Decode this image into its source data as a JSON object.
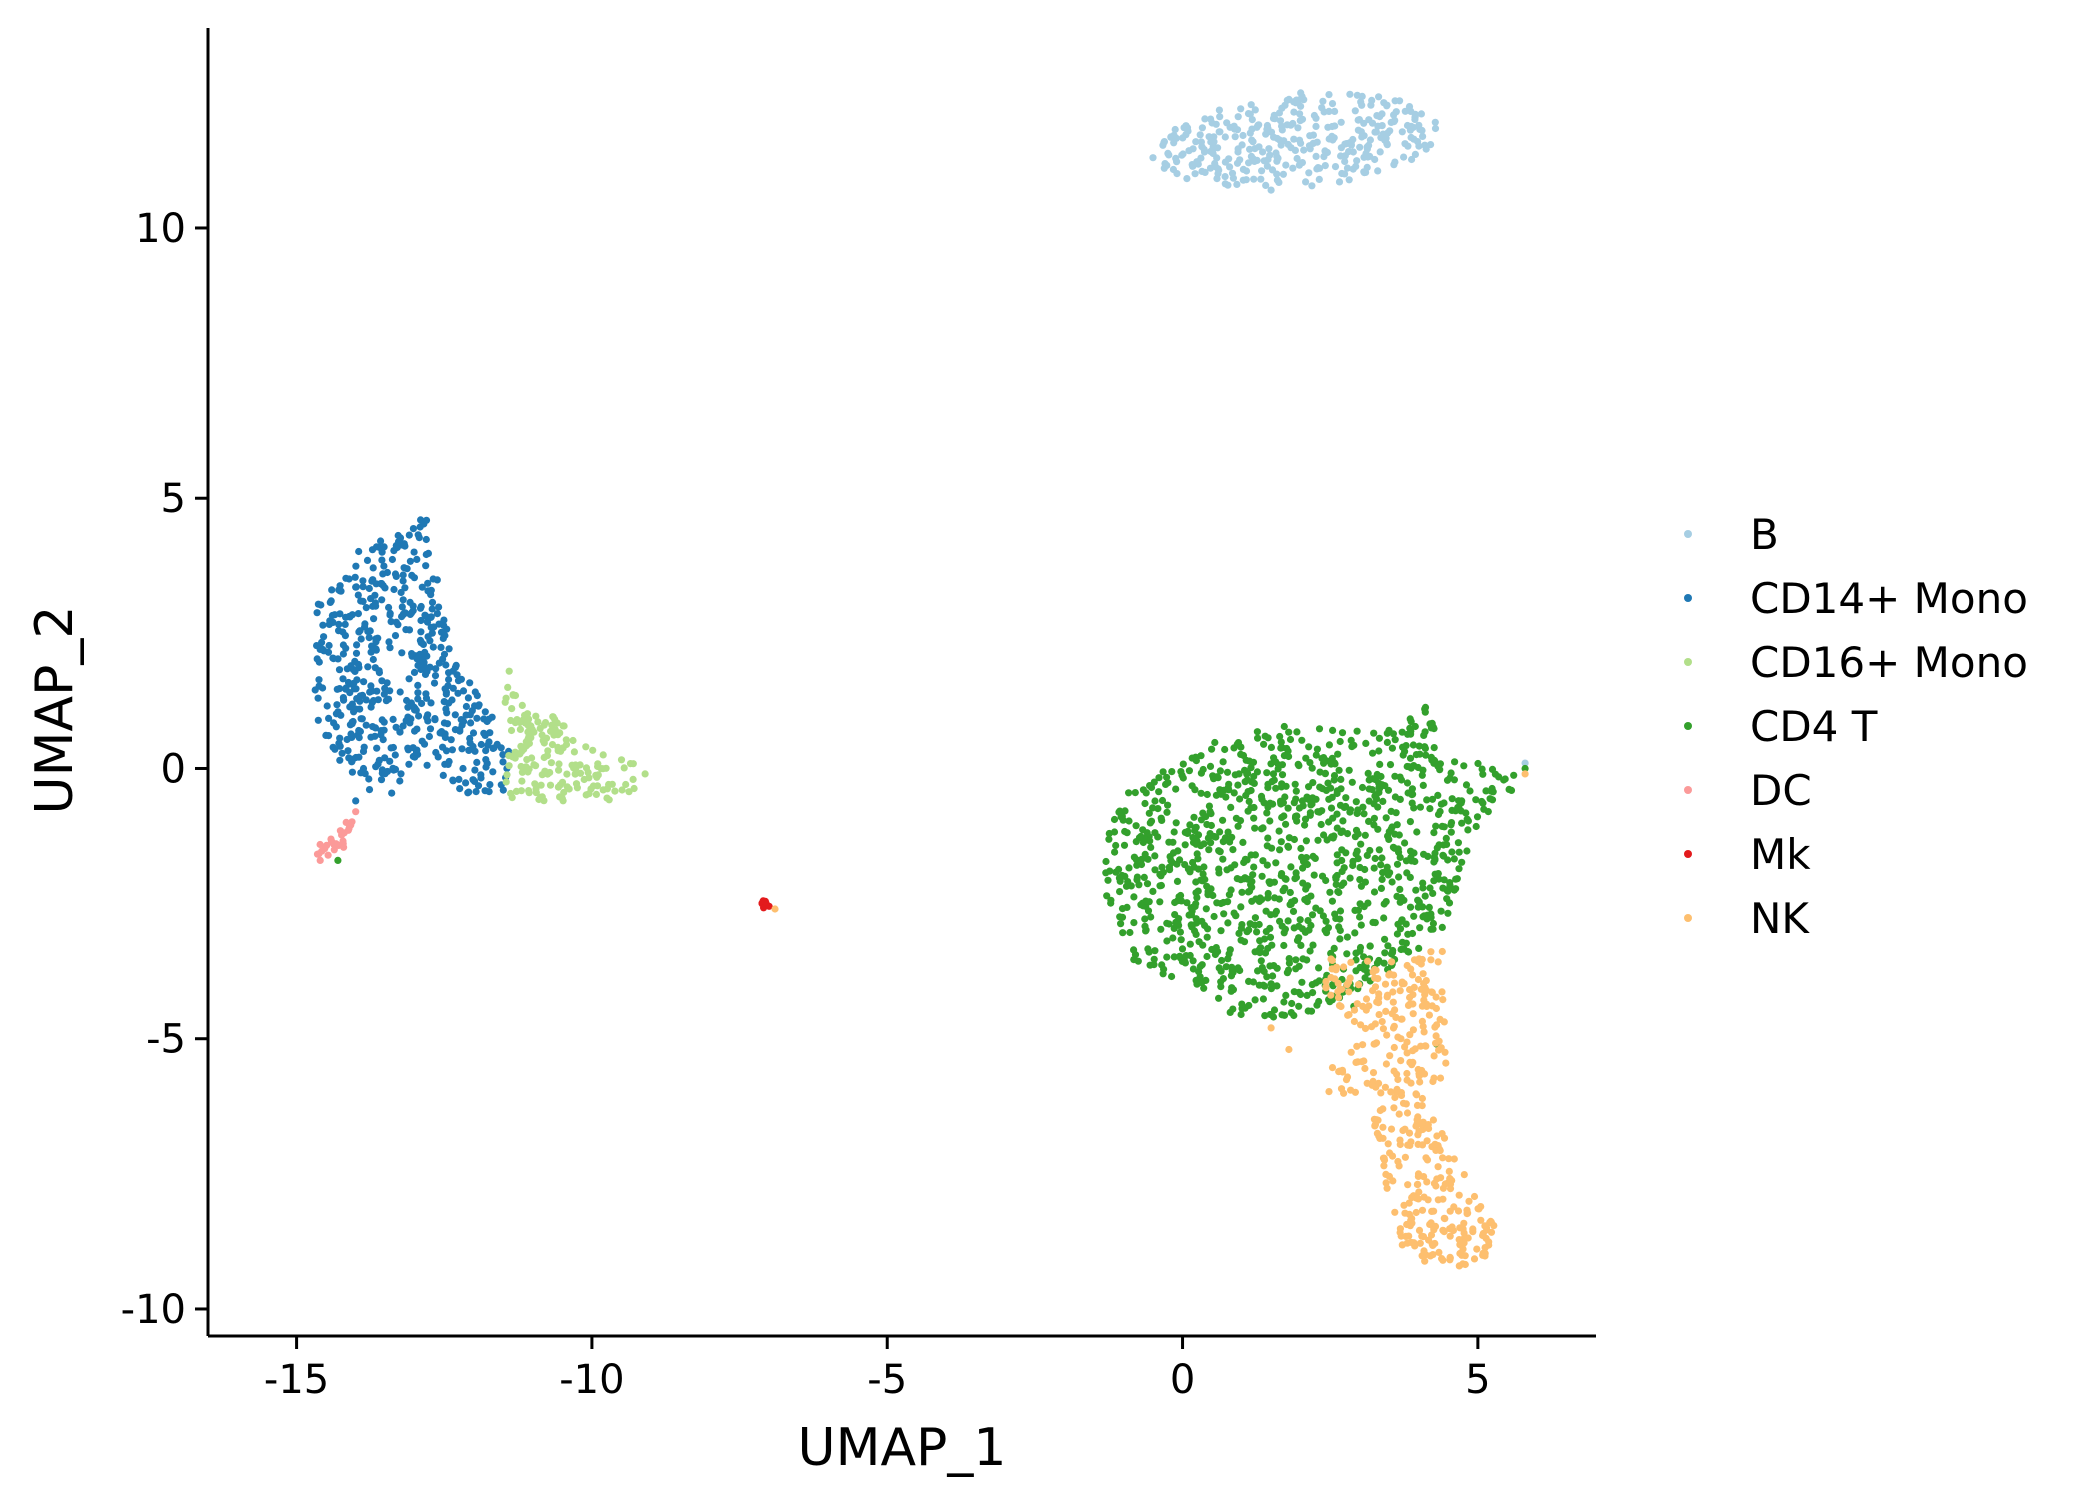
{
  "chart_data": {
    "type": "scatter",
    "title": "",
    "xlabel": "UMAP_1",
    "ylabel": "UMAP_2",
    "xlim": [
      -16.5,
      7
    ],
    "ylim": [
      -10.5,
      13.7
    ],
    "xticks": [
      {
        "value": -15,
        "label": "-15"
      },
      {
        "value": -10,
        "label": "-10"
      },
      {
        "value": -5,
        "label": "-5"
      },
      {
        "value": 0,
        "label": "0"
      },
      {
        "value": 5,
        "label": "5"
      }
    ],
    "yticks": [
      {
        "value": -10,
        "label": "-10"
      },
      {
        "value": -5,
        "label": "-5"
      },
      {
        "value": 0,
        "label": "0"
      },
      {
        "value": 5,
        "label": "5"
      },
      {
        "value": 10,
        "label": "10"
      }
    ],
    "grid": false,
    "legend_position": "right",
    "series": [
      {
        "name": "B",
        "color": "#a6cee3",
        "n": 340,
        "regions": [
          {
            "type": "ellipse",
            "cx": 1.95,
            "cy": 11.6,
            "rx": 2.45,
            "ry": 0.85,
            "angle_deg": 6
          }
        ],
        "points": [
          [
            -0.5,
            11.3
          ],
          [
            4.0,
            11.9
          ],
          [
            2.0,
            12.5
          ],
          [
            1.5,
            10.7
          ],
          [
            5.8,
            0.1
          ]
        ]
      },
      {
        "name": "CD14+ Mono",
        "color": "#1f78b4",
        "n": 520,
        "regions": [
          {
            "type": "polygon",
            "vertices": [
              [
                -14.7,
                3.0
              ],
              [
                -13.9,
                4.1
              ],
              [
                -12.8,
                4.6
              ],
              [
                -12.3,
                2.0
              ],
              [
                -11.6,
                0.8
              ],
              [
                -11.4,
                0.3
              ],
              [
                -11.5,
                -0.5
              ],
              [
                -12.2,
                -0.5
              ],
              [
                -13.0,
                0.2
              ],
              [
                -13.4,
                -0.5
              ],
              [
                -13.8,
                -0.6
              ],
              [
                -14.2,
                0.0
              ],
              [
                -14.7,
                1.0
              ]
            ]
          }
        ],
        "points": [
          [
            -12.9,
            4.6
          ],
          [
            -14.0,
            -0.6
          ],
          [
            -11.5,
            -0.4
          ]
        ]
      },
      {
        "name": "CD16+ Mono",
        "color": "#b2df8a",
        "n": 170,
        "regions": [
          {
            "type": "polygon",
            "vertices": [
              [
                -11.5,
                1.6
              ],
              [
                -11.0,
                1.0
              ],
              [
                -10.6,
                1.0
              ],
              [
                -10.1,
                0.4
              ],
              [
                -9.3,
                0.1
              ],
              [
                -9.1,
                -0.3
              ],
              [
                -9.6,
                -0.6
              ],
              [
                -10.5,
                -0.6
              ],
              [
                -11.5,
                -0.6
              ],
              [
                -11.4,
                0.3
              ]
            ]
          }
        ],
        "points": [
          [
            -11.4,
            1.8
          ],
          [
            -9.1,
            -0.1
          ]
        ]
      },
      {
        "name": "CD4 T",
        "color": "#33a02c",
        "n": 1150,
        "regions": [
          {
            "type": "polygon",
            "vertices": [
              [
                -1.3,
                -1.2
              ],
              [
                -0.9,
                -0.4
              ],
              [
                0.3,
                0.4
              ],
              [
                1.5,
                0.8
              ],
              [
                2.8,
                0.7
              ],
              [
                3.6,
                0.8
              ],
              [
                4.1,
                1.2
              ],
              [
                4.5,
                0.2
              ],
              [
                5.9,
                -0.1
              ],
              [
                5.0,
                -1.0
              ],
              [
                4.8,
                -1.8
              ],
              [
                4.4,
                -3.0
              ],
              [
                3.2,
                -4.0
              ],
              [
                2.0,
                -4.6
              ],
              [
                1.0,
                -4.7
              ],
              [
                0.3,
                -4.1
              ],
              [
                -0.8,
                -3.6
              ],
              [
                -1.3,
                -2.5
              ]
            ]
          }
        ],
        "points": [
          [
            -14.3,
            -1.7
          ],
          [
            4.1,
            1.1
          ],
          [
            5.8,
            0.0
          ],
          [
            4.3,
            -5.1
          ],
          [
            2.9,
            -4.4
          ]
        ]
      },
      {
        "name": "DC",
        "color": "#fb9a99",
        "n": 30,
        "regions": [
          {
            "type": "polygon",
            "vertices": [
              [
                -14.7,
                -1.5
              ],
              [
                -14.2,
                -1.0
              ],
              [
                -14.0,
                -0.8
              ],
              [
                -14.2,
                -1.5
              ],
              [
                -14.6,
                -1.7
              ]
            ]
          }
        ],
        "points": [
          [
            -14.0,
            -0.8
          ],
          [
            -14.6,
            -1.7
          ]
        ]
      },
      {
        "name": "Mk",
        "color": "#e31a1c",
        "n": 10,
        "regions": [
          {
            "type": "ellipse",
            "cx": -7.05,
            "cy": -2.5,
            "rx": 0.1,
            "ry": 0.1,
            "angle_deg": 0
          }
        ],
        "points": [
          [
            -7.1,
            -2.45
          ],
          [
            -7.0,
            -2.55
          ],
          [
            -7.05,
            -2.5
          ]
        ]
      },
      {
        "name": "NK",
        "color": "#fdbf6f",
        "n": 430,
        "regions": [
          {
            "type": "polygon",
            "vertices": [
              [
                2.4,
                -3.5
              ],
              [
                3.2,
                -3.5
              ],
              [
                4.0,
                -3.5
              ],
              [
                4.4,
                -3.2
              ],
              [
                4.4,
                -4.0
              ],
              [
                4.5,
                -5.5
              ],
              [
                4.3,
                -6.5
              ],
              [
                4.9,
                -7.7
              ],
              [
                5.3,
                -8.5
              ],
              [
                5.1,
                -9.3
              ],
              [
                4.0,
                -9.1
              ],
              [
                3.5,
                -8.6
              ],
              [
                3.4,
                -7.5
              ],
              [
                3.2,
                -6.3
              ],
              [
                2.3,
                -5.9
              ],
              [
                2.3,
                -5.4
              ],
              [
                3.1,
                -5.0
              ],
              [
                2.8,
                -4.6
              ],
              [
                2.4,
                -4.2
              ]
            ]
          }
        ],
        "points": [
          [
            1.8,
            -5.2
          ],
          [
            1.5,
            -4.8
          ],
          [
            5.8,
            -0.1
          ],
          [
            -6.9,
            -2.6
          ],
          [
            5.2,
            -8.4
          ]
        ]
      }
    ]
  }
}
